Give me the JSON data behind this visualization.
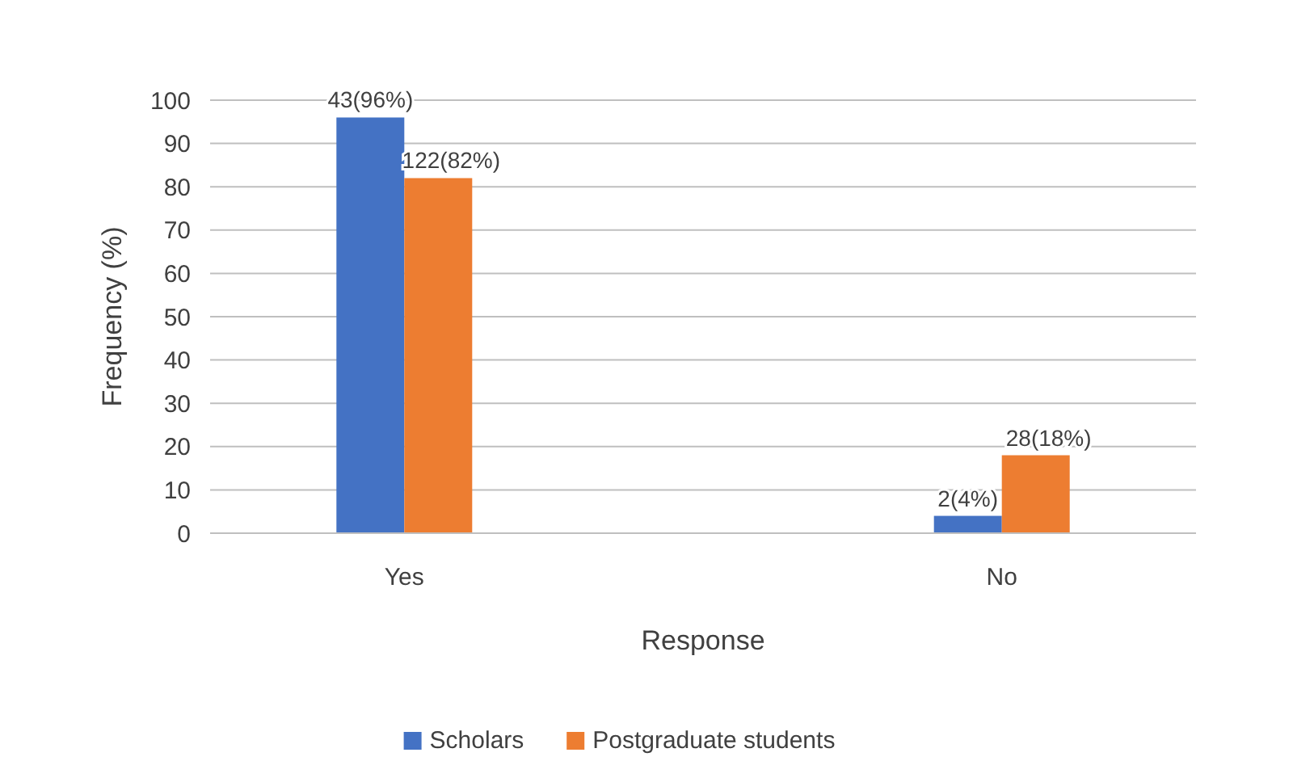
{
  "chart_data": {
    "type": "bar",
    "xlabel": "Response",
    "ylabel": "Frequency (%)",
    "categories": [
      "Yes",
      "No"
    ],
    "series": [
      {
        "name": "Scholars",
        "color": "#4472c4",
        "values": [
          96,
          4
        ],
        "value_labels": [
          "43(96%)",
          "2(4%)"
        ]
      },
      {
        "name": "Postgraduate students",
        "color": "#ed7d31",
        "values": [
          82,
          18
        ],
        "value_labels": [
          "122(82%)",
          "28(18%)"
        ]
      }
    ],
    "ylim": [
      0,
      100
    ],
    "yticks": [
      0,
      10,
      20,
      30,
      40,
      50,
      60,
      70,
      80,
      90,
      100
    ],
    "grid": "y",
    "legend": "bottom"
  }
}
